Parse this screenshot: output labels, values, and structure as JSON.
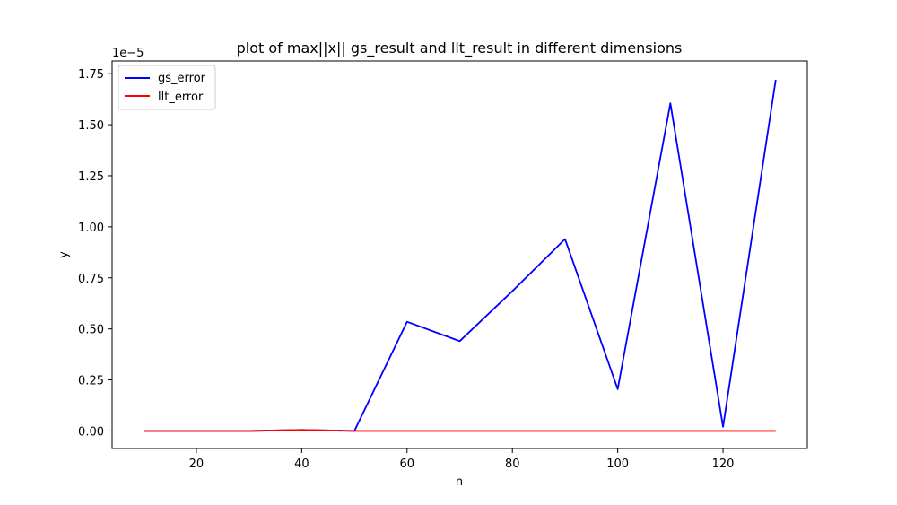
{
  "chart_data": {
    "type": "line",
    "title": "plot of max||x|| gs_result and llt_result in different dimensions",
    "xlabel": "n",
    "ylabel": "y",
    "y_offset_label": "1e−5",
    "x": [
      10,
      20,
      30,
      40,
      50,
      60,
      70,
      80,
      90,
      100,
      110,
      120,
      130
    ],
    "xlim": [
      4,
      136
    ],
    "ylim": [
      -0.086,
      1.8124
    ],
    "xticks": [
      20,
      40,
      60,
      80,
      100,
      120
    ],
    "yticks": [
      0.0,
      0.25,
      0.5,
      0.75,
      1.0,
      1.25,
      1.5,
      1.75
    ],
    "xtick_labels": [
      "20",
      "40",
      "60",
      "80",
      "100",
      "120"
    ],
    "ytick_labels": [
      "0.00",
      "0.25",
      "0.50",
      "0.75",
      "1.00",
      "1.25",
      "1.50",
      "1.75"
    ],
    "series": [
      {
        "name": "gs_error",
        "color": "#0000ff",
        "values": [
          0.0,
          0.0,
          0.0,
          0.005,
          0.0,
          0.535,
          0.44,
          0.685,
          0.94,
          0.205,
          1.605,
          0.02,
          1.72
        ]
      },
      {
        "name": "llt_error",
        "color": "#ff0000",
        "values": [
          0.0,
          0.0,
          0.0,
          0.005,
          0.0,
          0.0,
          0.0,
          0.0,
          0.0,
          0.0,
          0.0,
          0.0,
          0.0
        ]
      }
    ],
    "legend_position": "upper-left",
    "grid": false
  }
}
